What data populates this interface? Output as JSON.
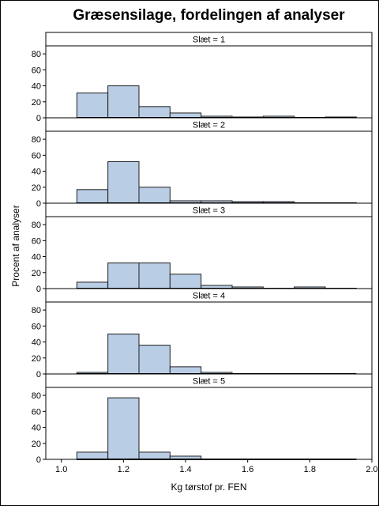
{
  "chart_data": {
    "type": "bar",
    "title": "Græsensilage, fordelingen af analyser",
    "xlabel": "Kg tørstof pr. FEN",
    "ylabel": "Procent af analyser",
    "xlim": [
      0.95,
      2.0
    ],
    "ylim": [
      0,
      90
    ],
    "x_ticks": [
      "1.0",
      "1.2",
      "1.4",
      "1.6",
      "1.8",
      "2.0"
    ],
    "y_ticks": [
      "0",
      "20",
      "40",
      "60",
      "80"
    ],
    "bin_edges": [
      1.05,
      1.15,
      1.25,
      1.35,
      1.45,
      1.55,
      1.65,
      1.75,
      1.85,
      1.95
    ],
    "panels": [
      {
        "label": "Slæt = 1",
        "values": [
          31,
          40,
          14,
          6,
          2,
          1,
          2,
          0,
          1
        ]
      },
      {
        "label": "Slæt = 2",
        "values": [
          17,
          52,
          20,
          3,
          3,
          2,
          2,
          0.5,
          0.5
        ]
      },
      {
        "label": "Slæt = 3",
        "values": [
          8,
          32,
          32,
          18,
          4,
          2,
          0,
          2,
          0.5
        ]
      },
      {
        "label": "Slæt = 4",
        "values": [
          2,
          50,
          36,
          9,
          2,
          0,
          0,
          0,
          0
        ]
      },
      {
        "label": "Slæt = 5",
        "values": [
          9,
          77,
          9,
          4,
          0,
          0,
          0,
          0,
          0
        ]
      }
    ]
  },
  "colors": {
    "bar_fill": "#b9cde5",
    "bar_stroke": "#1f1f1f",
    "background": "#ffffff"
  }
}
